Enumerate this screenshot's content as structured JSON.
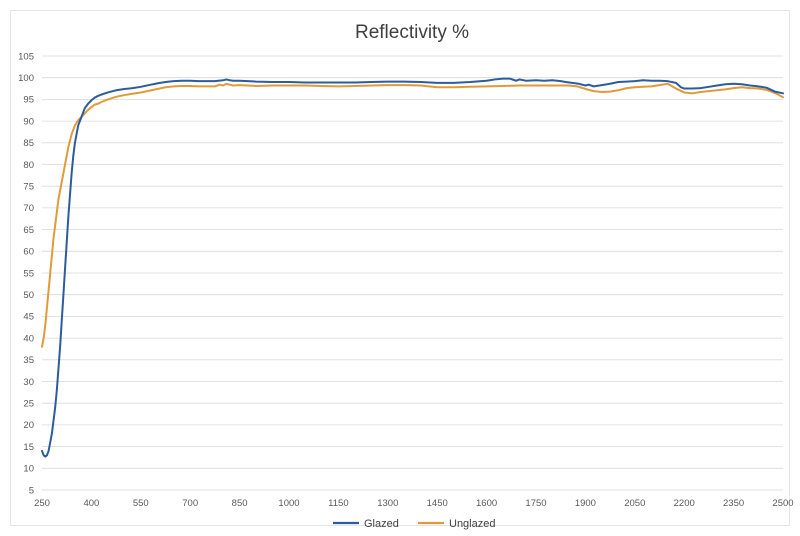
{
  "chart_data": {
    "type": "line",
    "title": "Reflectivity  %",
    "xlabel": "",
    "ylabel": "",
    "xlim": [
      250,
      2500
    ],
    "ylim": [
      5,
      105
    ],
    "xticks": [
      250,
      400,
      550,
      700,
      850,
      1000,
      1150,
      1300,
      1450,
      1600,
      1750,
      1900,
      2050,
      2200,
      2350,
      2500
    ],
    "yticks": [
      5,
      10,
      15,
      20,
      25,
      30,
      35,
      40,
      45,
      50,
      55,
      60,
      65,
      70,
      75,
      80,
      85,
      90,
      95,
      100,
      105
    ],
    "grid": "horizontal",
    "legend_position": "bottom",
    "series": [
      {
        "name": "Glazed",
        "color": "#2b5c9c",
        "x": [
          250,
          255,
          260,
          265,
          270,
          275,
          280,
          285,
          290,
          295,
          300,
          305,
          310,
          315,
          320,
          325,
          330,
          335,
          340,
          345,
          350,
          355,
          360,
          365,
          370,
          375,
          380,
          390,
          400,
          410,
          420,
          430,
          450,
          475,
          500,
          525,
          550,
          575,
          600,
          625,
          650,
          675,
          700,
          725,
          750,
          775,
          800,
          810,
          820,
          830,
          850,
          875,
          900,
          950,
          1000,
          1050,
          1100,
          1150,
          1200,
          1250,
          1300,
          1350,
          1400,
          1450,
          1500,
          1550,
          1600,
          1625,
          1650,
          1670,
          1690,
          1700,
          1720,
          1750,
          1775,
          1800,
          1825,
          1840,
          1860,
          1880,
          1900,
          1910,
          1925,
          1950,
          1975,
          2000,
          2025,
          2050,
          2075,
          2100,
          2125,
          2150,
          2175,
          2190,
          2200,
          2225,
          2250,
          2275,
          2300,
          2325,
          2350,
          2375,
          2400,
          2425,
          2450,
          2475,
          2500
        ],
        "values": [
          14,
          13,
          12.7,
          13,
          14,
          16,
          18,
          21,
          24,
          28,
          33,
          38,
          44,
          50,
          56,
          62,
          68,
          73,
          78,
          82,
          85,
          87,
          89,
          90,
          91,
          92,
          93,
          94,
          94.8,
          95.4,
          95.8,
          96.1,
          96.6,
          97.1,
          97.4,
          97.6,
          97.9,
          98.3,
          98.7,
          99.0,
          99.2,
          99.3,
          99.3,
          99.2,
          99.2,
          99.2,
          99.4,
          99.6,
          99.4,
          99.3,
          99.3,
          99.2,
          99.1,
          99.0,
          99.0,
          98.9,
          98.9,
          98.9,
          98.9,
          99.0,
          99.1,
          99.1,
          99.0,
          98.8,
          98.8,
          99.0,
          99.3,
          99.6,
          99.8,
          99.8,
          99.3,
          99.6,
          99.3,
          99.4,
          99.3,
          99.4,
          99.2,
          99.0,
          98.8,
          98.6,
          98.2,
          98.4,
          98.0,
          98.3,
          98.6,
          99.0,
          99.1,
          99.2,
          99.4,
          99.3,
          99.3,
          99.2,
          98.8,
          97.8,
          97.5,
          97.5,
          97.6,
          97.9,
          98.2,
          98.5,
          98.6,
          98.5,
          98.2,
          98.0,
          97.7,
          96.8,
          96.4
        ]
      },
      {
        "name": "Unglazed",
        "color": "#e19a3a",
        "x": [
          250,
          255,
          260,
          265,
          270,
          275,
          280,
          285,
          290,
          295,
          300,
          305,
          310,
          315,
          320,
          325,
          330,
          335,
          340,
          350,
          360,
          370,
          380,
          390,
          400,
          410,
          420,
          430,
          450,
          475,
          500,
          525,
          550,
          575,
          600,
          625,
          650,
          675,
          700,
          725,
          750,
          775,
          790,
          800,
          810,
          830,
          850,
          875,
          900,
          950,
          1000,
          1050,
          1100,
          1150,
          1200,
          1250,
          1300,
          1350,
          1400,
          1450,
          1500,
          1550,
          1600,
          1650,
          1700,
          1750,
          1800,
          1825,
          1850,
          1875,
          1900,
          1925,
          1950,
          1975,
          2000,
          2025,
          2050,
          2075,
          2100,
          2125,
          2150,
          2175,
          2200,
          2225,
          2250,
          2275,
          2300,
          2325,
          2350,
          2375,
          2400,
          2425,
          2450,
          2475,
          2500
        ],
        "values": [
          38,
          40,
          43,
          47,
          51,
          55,
          59,
          63,
          66,
          69,
          72,
          74,
          76,
          78,
          80,
          82,
          84,
          85.5,
          87,
          89,
          90.2,
          91,
          91.8,
          92.6,
          93.2,
          93.8,
          94.0,
          94.4,
          95.0,
          95.6,
          96.0,
          96.3,
          96.6,
          97.0,
          97.4,
          97.8,
          98.0,
          98.1,
          98.1,
          98.0,
          98.0,
          98.0,
          98.4,
          98.2,
          98.6,
          98.2,
          98.3,
          98.2,
          98.1,
          98.2,
          98.2,
          98.2,
          98.1,
          98.0,
          98.1,
          98.2,
          98.3,
          98.3,
          98.2,
          97.8,
          97.8,
          97.9,
          98.0,
          98.1,
          98.2,
          98.2,
          98.2,
          98.2,
          98.2,
          98.0,
          97.4,
          96.9,
          96.7,
          96.8,
          97.1,
          97.6,
          97.8,
          97.9,
          98.0,
          98.3,
          98.6,
          97.5,
          96.6,
          96.4,
          96.7,
          96.9,
          97.1,
          97.3,
          97.6,
          97.8,
          97.6,
          97.5,
          97.2,
          96.5,
          95.5
        ]
      }
    ]
  }
}
